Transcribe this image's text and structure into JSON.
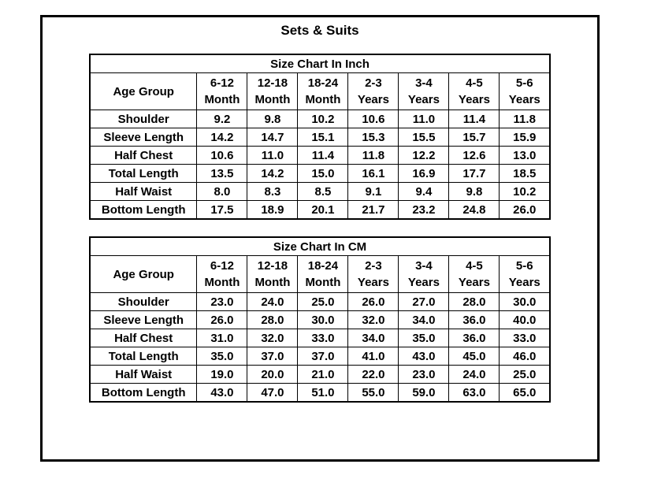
{
  "page": {
    "title": "Sets & Suits"
  },
  "tables": [
    {
      "title": "Size Chart In Inch",
      "age_group_label": "Age Group",
      "columns": [
        "6-12\nMonth",
        "12-18\nMonth",
        "18-24\nMonth",
        "2-3\nYears",
        "3-4\nYears",
        "4-5\nYears",
        "5-6\nYears"
      ],
      "rows": [
        {
          "label": "Shoulder",
          "values": [
            "9.2",
            "9.8",
            "10.2",
            "10.6",
            "11.0",
            "11.4",
            "11.8"
          ]
        },
        {
          "label": "Sleeve Length",
          "values": [
            "14.2",
            "14.7",
            "15.1",
            "15.3",
            "15.5",
            "15.7",
            "15.9"
          ]
        },
        {
          "label": "Half Chest",
          "values": [
            "10.6",
            "11.0",
            "11.4",
            "11.8",
            "12.2",
            "12.6",
            "13.0"
          ]
        },
        {
          "label": "Total Length",
          "values": [
            "13.5",
            "14.2",
            "15.0",
            "16.1",
            "16.9",
            "17.7",
            "18.5"
          ]
        },
        {
          "label": "Half Waist",
          "values": [
            "8.0",
            "8.3",
            "8.5",
            "9.1",
            "9.4",
            "9.8",
            "10.2"
          ]
        },
        {
          "label": "Bottom Length",
          "values": [
            "17.5",
            "18.9",
            "20.1",
            "21.7",
            "23.2",
            "24.8",
            "26.0"
          ]
        }
      ]
    },
    {
      "title": "Size Chart In CM",
      "age_group_label": "Age Group",
      "columns": [
        "6-12\nMonth",
        "12-18\nMonth",
        "18-24\nMonth",
        "2-3\nYears",
        "3-4\nYears",
        "4-5\nYears",
        "5-6\nYears"
      ],
      "rows": [
        {
          "label": "Shoulder",
          "values": [
            "23.0",
            "24.0",
            "25.0",
            "26.0",
            "27.0",
            "28.0",
            "30.0"
          ]
        },
        {
          "label": "Sleeve Length",
          "values": [
            "26.0",
            "28.0",
            "30.0",
            "32.0",
            "34.0",
            "36.0",
            "40.0"
          ]
        },
        {
          "label": "Half Chest",
          "values": [
            "31.0",
            "32.0",
            "33.0",
            "34.0",
            "35.0",
            "36.0",
            "33.0"
          ]
        },
        {
          "label": "Total Length",
          "values": [
            "35.0",
            "37.0",
            "37.0",
            "41.0",
            "43.0",
            "45.0",
            "46.0"
          ]
        },
        {
          "label": "Half Waist",
          "values": [
            "19.0",
            "20.0",
            "21.0",
            "22.0",
            "23.0",
            "24.0",
            "25.0"
          ]
        },
        {
          "label": "Bottom Length",
          "values": [
            "43.0",
            "47.0",
            "51.0",
            "55.0",
            "59.0",
            "63.0",
            "65.0"
          ]
        }
      ]
    }
  ],
  "colors": {
    "text": "#000000",
    "background": "#ffffff",
    "border": "#000000"
  }
}
